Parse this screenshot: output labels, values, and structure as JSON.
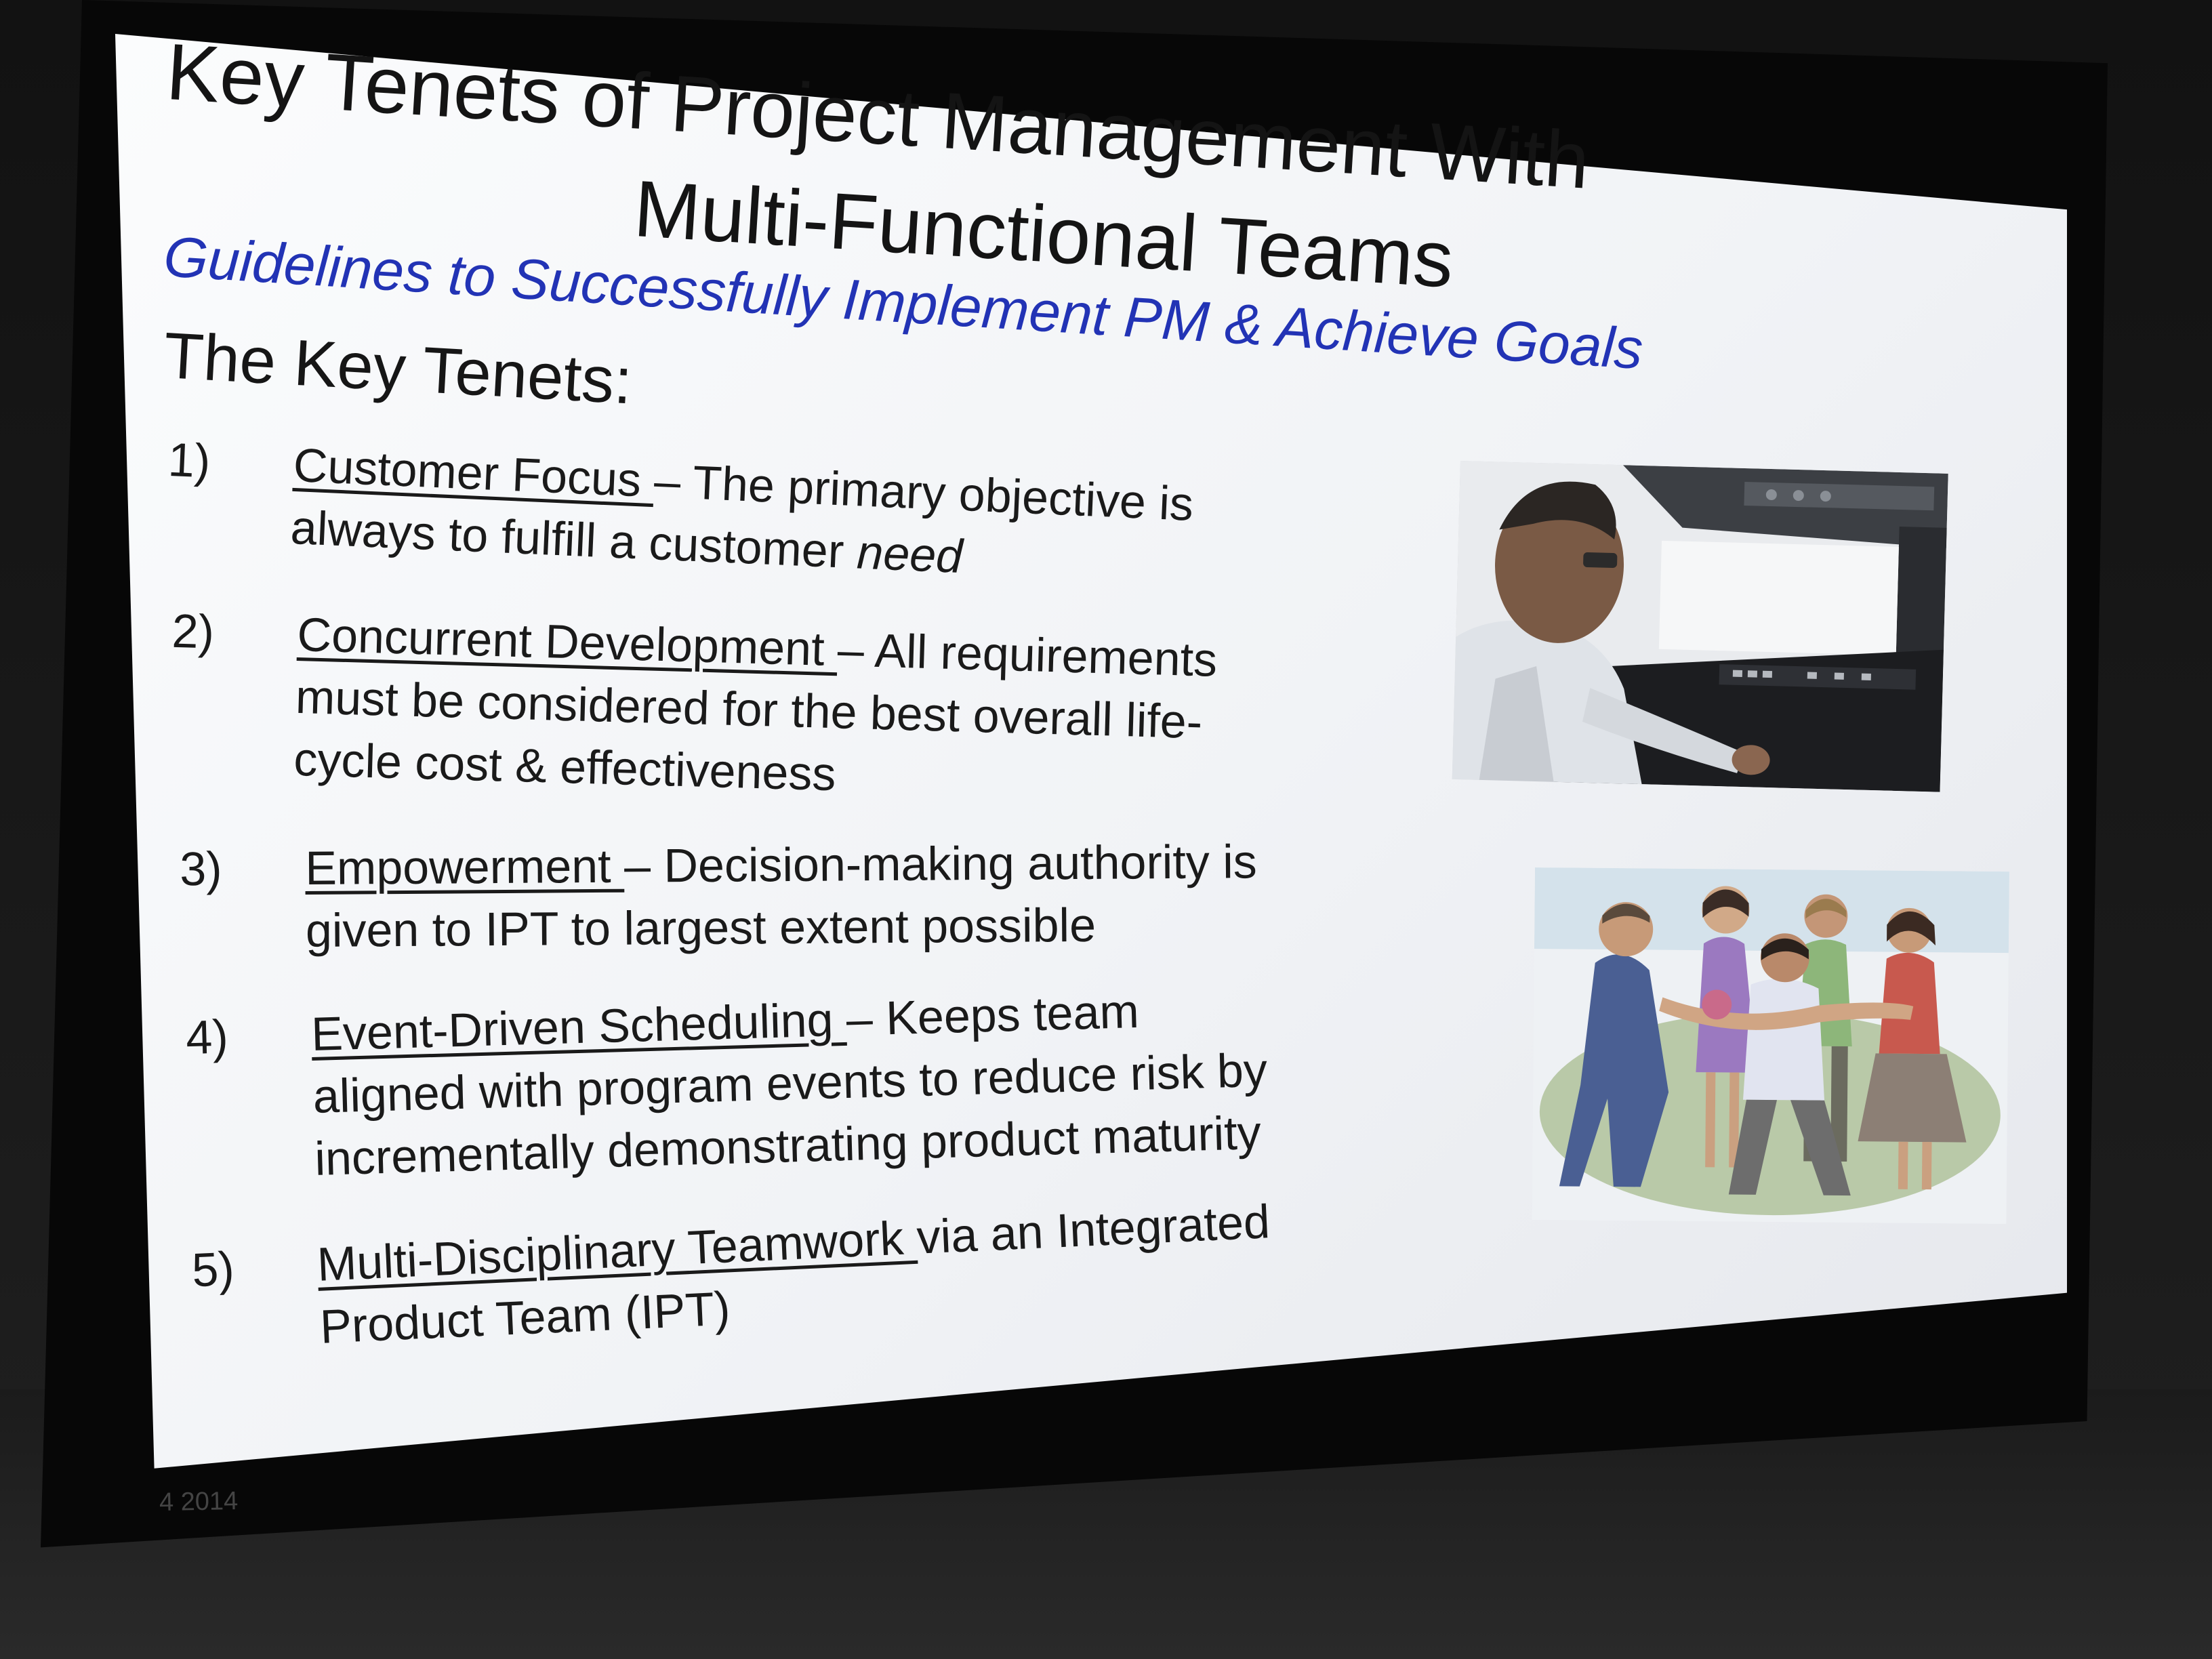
{
  "slide": {
    "title_line1": "Key Tenets of Project Management With",
    "title_line2": "Multi-Functional Teams",
    "subtitle": "Guidelines to Successfully Implement PM & Achieve Goals",
    "section_heading": "The Key Tenets:",
    "tenets": [
      {
        "number": "1)",
        "term": "Customer Focus ",
        "line1_rest": "– The primary objective is",
        "line2_before": "always to fulfill a customer ",
        "line2_emph": "need",
        "line3": ""
      },
      {
        "number": "2)",
        "term": "Concurrent Development ",
        "line1_rest": "– All requirements",
        "line2": "must be considered for the best overall life-",
        "line3": "cycle cost & effectiveness"
      },
      {
        "number": "3)",
        "term": "Empowerment ",
        "line1_rest": "– Decision-making authority is",
        "line2": "given to IPT to largest extent possible",
        "line3": ""
      },
      {
        "number": "4)",
        "term": "Event-Driven Scheduling ",
        "line1_rest": "– Keeps team",
        "line2": "aligned with program events to reduce risk by",
        "line3": "incrementally demonstrating product maturity"
      },
      {
        "number": "5)",
        "term": "Multi-Disciplinary Teamwork ",
        "line1_rest": "via an Integrated",
        "line2": "Product Team (IPT)",
        "line3": ""
      }
    ],
    "footer_year": "4 2014"
  },
  "images": {
    "pilot_photo": "pilot-in-cockpit-photo",
    "team_clipart": "team-huddle-clipart"
  },
  "colors": {
    "subtitle_blue": "#2233b5",
    "text_dark": "#1a1a1a",
    "screen_white": "#f4f5f8",
    "room_dark": "#121212"
  }
}
